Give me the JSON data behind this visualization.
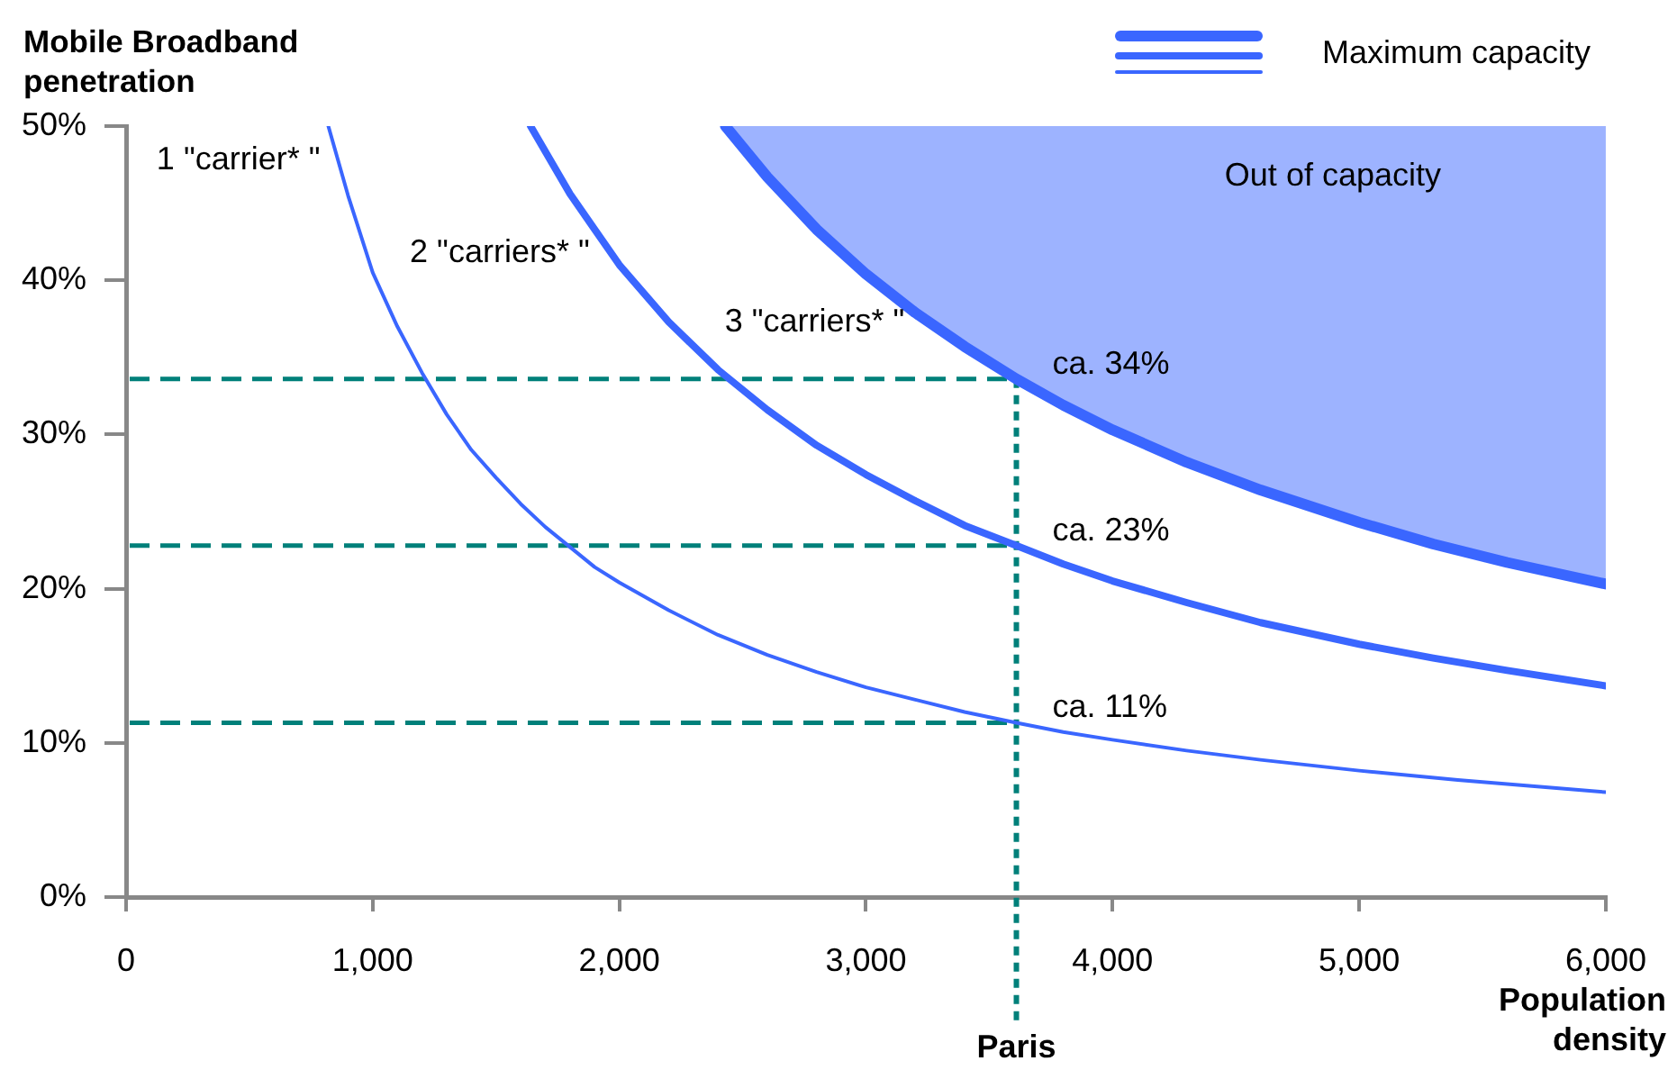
{
  "chart_data": {
    "type": "line",
    "xlabel": "Population density",
    "ylabel": "Mobile Broadband penetration",
    "annotations": [
      "Maximum capacity",
      "Out of capacity"
    ],
    "xlim": [
      0,
      6000
    ],
    "xticks": [
      0,
      {
        "value": 1000,
        "label": "1,000"
      },
      {
        "value": 2000,
        "label": "2,000"
      },
      {
        "value": 3000,
        "label": "3,000"
      },
      {
        "value": 4000,
        "label": "4,000"
      },
      {
        "value": 5000,
        "label": "5,000"
      },
      {
        "value": 6000,
        "label": "6,000"
      }
    ],
    "ylim": [
      0,
      50
    ],
    "yticks": [
      {
        "value": 0,
        "label": "0%"
      },
      {
        "value": 10,
        "label": "10%"
      },
      {
        "value": 20,
        "label": "20%"
      },
      {
        "value": 30,
        "label": "30%"
      },
      {
        "value": 40,
        "label": "40%"
      },
      {
        "value": 50,
        "label": "50%"
      }
    ],
    "series": [
      {
        "name": "1 \"carrier* \"",
        "color": "#3a66ff",
        "x": [
          820,
          900,
          1000,
          1100,
          1200,
          1300,
          1400,
          1500,
          1600,
          1700,
          1800,
          1900,
          2000,
          2200,
          2400,
          2600,
          2800,
          3000,
          3200,
          3400,
          3610,
          3800,
          4000,
          4300,
          4600,
          5000,
          5400,
          5700,
          6000
        ],
        "values": [
          50,
          45.5,
          40.5,
          37,
          34,
          31.3,
          29,
          27.2,
          25.5,
          24,
          22.7,
          21.4,
          20.4,
          18.6,
          17,
          15.7,
          14.6,
          13.6,
          12.8,
          12,
          11.3,
          10.7,
          10.2,
          9.5,
          8.9,
          8.2,
          7.6,
          7.2,
          6.8
        ]
      },
      {
        "name": "2 \"carriers* \"",
        "color": "#3a66ff",
        "x": [
          1640,
          1800,
          2000,
          2200,
          2400,
          2600,
          2800,
          3000,
          3200,
          3400,
          3610,
          3800,
          4000,
          4300,
          4600,
          5000,
          5300,
          5600,
          6000
        ],
        "values": [
          50,
          45.6,
          41,
          37.3,
          34.2,
          31.6,
          29.3,
          27.4,
          25.7,
          24.1,
          22.8,
          21.6,
          20.5,
          19.1,
          17.8,
          16.4,
          15.5,
          14.7,
          13.7
        ]
      },
      {
        "name": "3 \"carriers* \"",
        "color": "#3a66ff",
        "x": [
          2430,
          2600,
          2800,
          3000,
          3200,
          3400,
          3610,
          3800,
          4000,
          4300,
          4600,
          5000,
          5300,
          5600,
          6000
        ],
        "values": [
          50,
          46.7,
          43.3,
          40.4,
          37.9,
          35.7,
          33.6,
          31.9,
          30.3,
          28.2,
          26.4,
          24.3,
          22.9,
          21.7,
          20.3
        ],
        "lower": [
          50,
          46.7,
          43.3,
          40.4,
          37.9,
          35.7,
          33.6,
          31.9,
          30.3,
          28.2,
          26.4,
          24.3,
          22.9,
          21.7,
          20.3
        ],
        "upper": [
          50,
          50,
          50,
          50,
          50,
          50,
          50,
          50,
          50,
          50,
          50,
          50,
          50,
          50,
          50
        ]
      }
    ],
    "ref_lines": [
      {
        "axis": "y",
        "value": 33.6,
        "label": "ca. 34%",
        "color": "#00807a",
        "line_style": "dashed"
      },
      {
        "axis": "y",
        "value": 22.8,
        "label": "ca. 23%",
        "color": "#00807a",
        "line_style": "dashed"
      },
      {
        "axis": "y",
        "value": 11.3,
        "label": "ca. 11%",
        "color": "#00807a",
        "line_style": "dashed"
      },
      {
        "axis": "x",
        "value": 3610,
        "label": "Paris",
        "color": "#00807a",
        "line_style": "dotted"
      }
    ]
  }
}
